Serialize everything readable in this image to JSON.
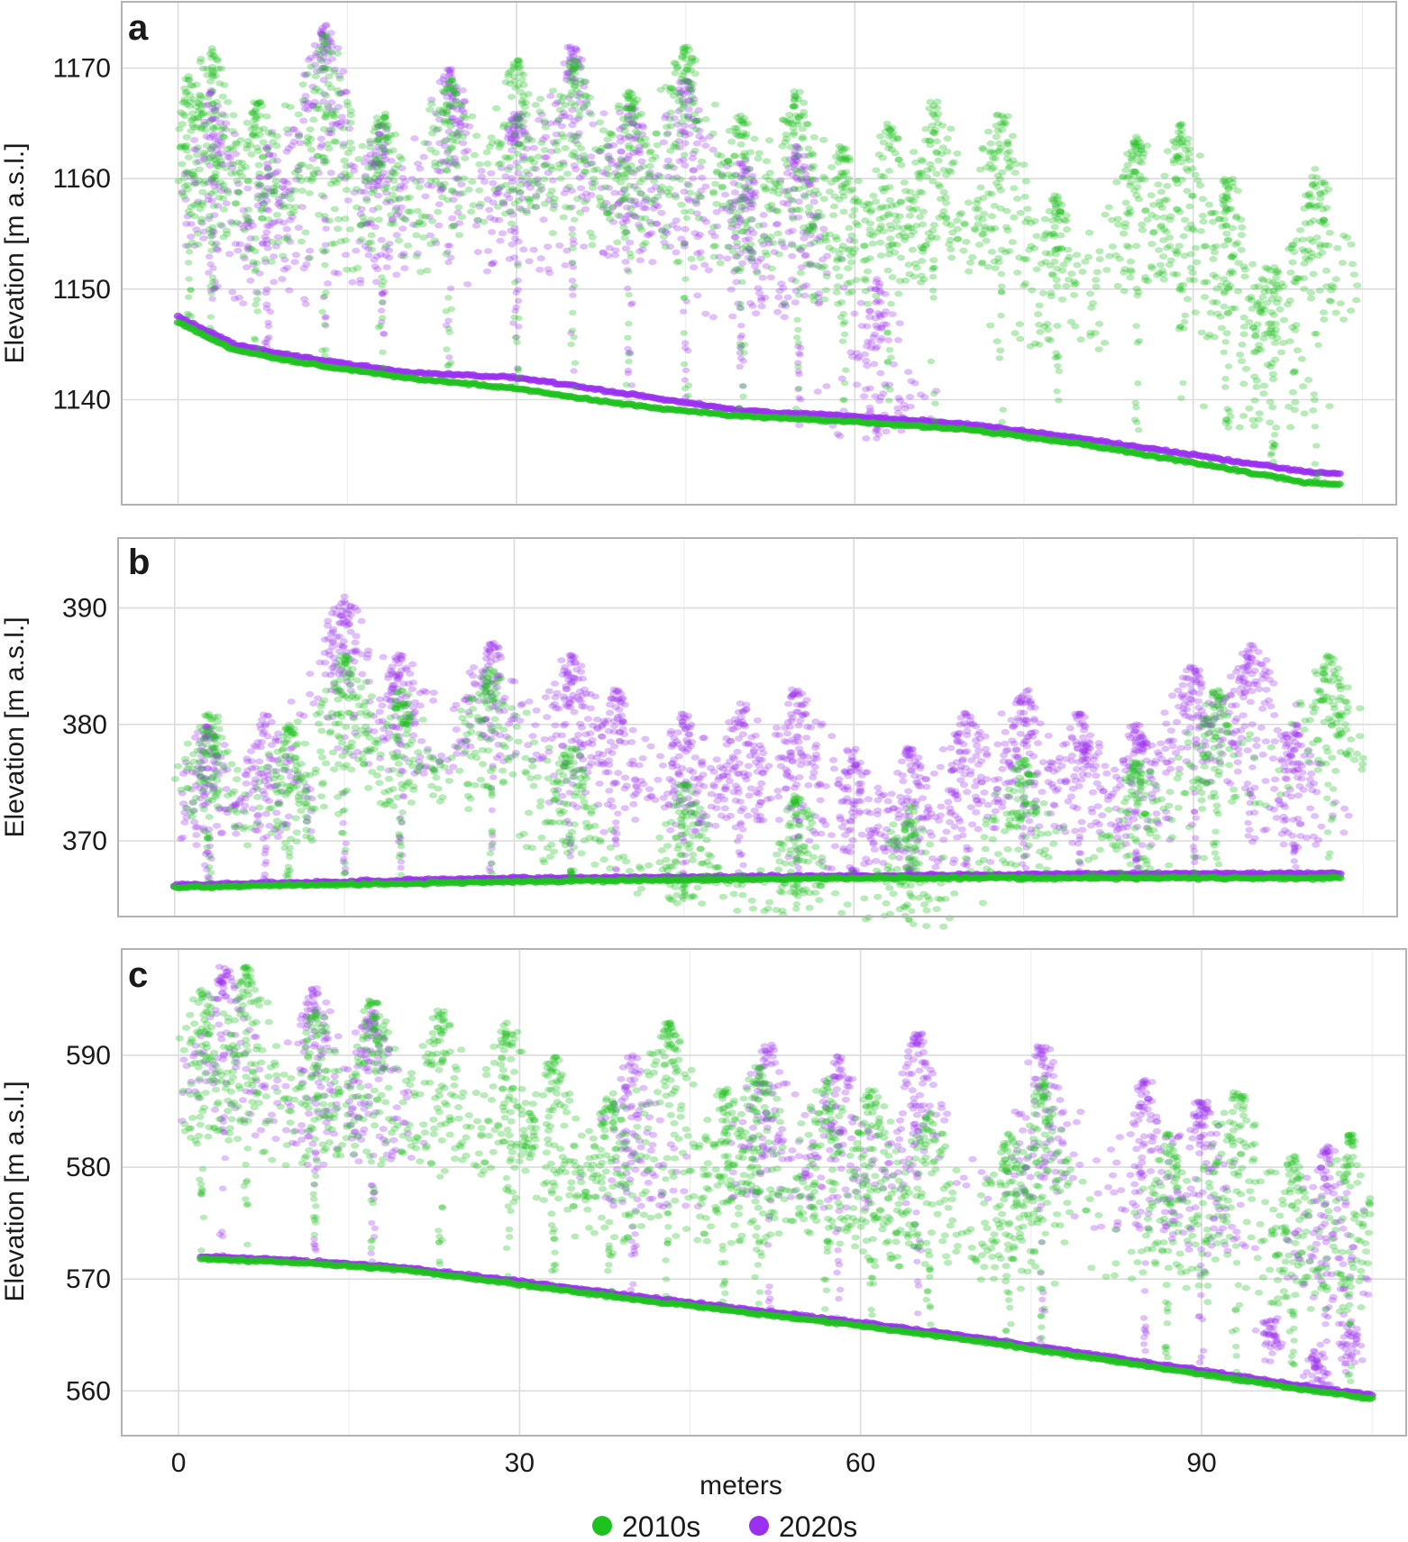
{
  "chart_data": [
    {
      "panel": "a",
      "type": "scatter",
      "ylabel": "Elevation [m a.s.l.]",
      "xlim": [
        -5,
        108
      ],
      "ylim": [
        1130.5,
        1176
      ],
      "xticks": [
        0,
        30,
        60,
        90
      ],
      "yticks": [
        1140,
        1150,
        1160,
        1170
      ],
      "grid": true,
      "series": [
        {
          "name": "2010s",
          "color": "#1ec21e",
          "ground": [
            [
              0,
              1147
            ],
            [
              5,
              1144.5
            ],
            [
              10,
              1143.5
            ],
            [
              20,
              1142
            ],
            [
              30,
              1141
            ],
            [
              40,
              1139.5
            ],
            [
              50,
              1138.5
            ],
            [
              60,
              1138
            ],
            [
              70,
              1137.3
            ],
            [
              80,
              1136
            ],
            [
              90,
              1134.3
            ],
            [
              100,
              1132.5
            ],
            [
              103,
              1132.3
            ]
          ],
          "crowns": [
            [
              1,
              1169
            ],
            [
              3,
              1172
            ],
            [
              7,
              1167
            ],
            [
              13,
              1173
            ],
            [
              18,
              1166
            ],
            [
              24,
              1169
            ],
            [
              30,
              1171
            ],
            [
              35,
              1171
            ],
            [
              40,
              1168
            ],
            [
              45,
              1172
            ],
            [
              50,
              1166
            ],
            [
              55,
              1168
            ],
            [
              59,
              1163
            ],
            [
              63,
              1165
            ],
            [
              67,
              1167
            ],
            [
              73,
              1166
            ],
            [
              78,
              1159
            ],
            [
              85,
              1164
            ],
            [
              89,
              1165
            ],
            [
              93,
              1160
            ],
            [
              97,
              1152
            ],
            [
              101,
              1161
            ]
          ]
        },
        {
          "name": "2020s",
          "color": "#9b30f0",
          "ground": [
            [
              0,
              1147.5
            ],
            [
              5,
              1145
            ],
            [
              10,
              1144
            ],
            [
              20,
              1142.5
            ],
            [
              30,
              1142
            ],
            [
              40,
              1140.5
            ],
            [
              50,
              1139
            ],
            [
              60,
              1138.5
            ],
            [
              70,
              1137.8
            ],
            [
              80,
              1136.5
            ],
            [
              90,
              1135
            ],
            [
              100,
              1133.5
            ],
            [
              103,
              1133.3
            ]
          ],
          "crowns": [
            [
              3,
              1168
            ],
            [
              8,
              1163
            ],
            [
              13,
              1174
            ],
            [
              18,
              1165
            ],
            [
              24,
              1170
            ],
            [
              30,
              1166
            ],
            [
              35,
              1172
            ],
            [
              40,
              1167
            ],
            [
              45,
              1169
            ],
            [
              50,
              1162
            ],
            [
              55,
              1163
            ],
            [
              62,
              1151
            ]
          ]
        }
      ]
    },
    {
      "panel": "b",
      "type": "scatter",
      "ylabel": "Elevation [m a.s.l.]",
      "xlim": [
        -5,
        108
      ],
      "ylim": [
        363.5,
        396
      ],
      "xticks": [
        0,
        30,
        60,
        90
      ],
      "yticks": [
        370,
        380,
        390
      ],
      "grid": true,
      "series": [
        {
          "name": "2010s",
          "color": "#1ec21e",
          "ground": [
            [
              0,
              366
            ],
            [
              30,
              366.5
            ],
            [
              60,
              366.8
            ],
            [
              90,
              366.8
            ],
            [
              103,
              366.8
            ]
          ],
          "crowns": [
            [
              3,
              381
            ],
            [
              10,
              380
            ],
            [
              15,
              386
            ],
            [
              20,
              383
            ],
            [
              28,
              385
            ],
            [
              35,
              378
            ],
            [
              45,
              375
            ],
            [
              55,
              374
            ],
            [
              65,
              373
            ],
            [
              75,
              377
            ],
            [
              85,
              377
            ],
            [
              92,
              383
            ],
            [
              102,
              386
            ]
          ]
        },
        {
          "name": "2020s",
          "color": "#9b30f0",
          "ground": [
            [
              0,
              366.2
            ],
            [
              30,
              366.8
            ],
            [
              60,
              367
            ],
            [
              90,
              367.2
            ],
            [
              103,
              367.2
            ]
          ],
          "crowns": [
            [
              3,
              380
            ],
            [
              8,
              381
            ],
            [
              15,
              391
            ],
            [
              20,
              386
            ],
            [
              28,
              387
            ],
            [
              35,
              386
            ],
            [
              39,
              383
            ],
            [
              45,
              381
            ],
            [
              50,
              382
            ],
            [
              55,
              383
            ],
            [
              60,
              378
            ],
            [
              65,
              378
            ],
            [
              70,
              381
            ],
            [
              75,
              383
            ],
            [
              80,
              381
            ],
            [
              85,
              380
            ],
            [
              90,
              385
            ],
            [
              95,
              387
            ],
            [
              99,
              380
            ]
          ]
        }
      ]
    },
    {
      "panel": "c",
      "type": "scatter",
      "ylabel": "Elevation [m a.s.l.]",
      "xlim": [
        -5,
        108
      ],
      "ylim": [
        556,
        599.5
      ],
      "xticks": [
        0,
        30,
        60,
        90
      ],
      "yticks": [
        560,
        570,
        580,
        590
      ],
      "grid": true,
      "series": [
        {
          "name": "2010s",
          "color": "#1ec21e",
          "ground": [
            [
              2,
              571.8
            ],
            [
              10,
              571.5
            ],
            [
              20,
              570.8
            ],
            [
              30,
              569.5
            ],
            [
              40,
              568.2
            ],
            [
              50,
              567
            ],
            [
              60,
              565.8
            ],
            [
              70,
              564.5
            ],
            [
              80,
              563
            ],
            [
              90,
              561.5
            ],
            [
              100,
              560
            ],
            [
              105,
              559.3
            ]
          ],
          "crowns": [
            [
              2,
              596
            ],
            [
              6,
              598
            ],
            [
              12,
              594
            ],
            [
              17,
              595
            ],
            [
              23,
              594
            ],
            [
              29,
              593
            ],
            [
              33,
              590
            ],
            [
              38,
              587
            ],
            [
              43,
              593
            ],
            [
              48,
              587
            ],
            [
              51,
              589
            ],
            [
              57,
              588
            ],
            [
              61,
              587
            ],
            [
              66,
              585
            ],
            [
              73,
              583
            ],
            [
              76,
              588
            ],
            [
              87,
              583
            ],
            [
              93,
              587
            ],
            [
              98,
              581
            ],
            [
              103,
              583
            ]
          ]
        },
        {
          "name": "2020s",
          "color": "#9b30f0",
          "ground": [
            [
              2,
              572
            ],
            [
              10,
              571.7
            ],
            [
              20,
              571
            ],
            [
              30,
              569.8
            ],
            [
              40,
              568.5
            ],
            [
              50,
              567.3
            ],
            [
              60,
              566.1
            ],
            [
              70,
              564.8
            ],
            [
              80,
              563.3
            ],
            [
              90,
              561.8
            ],
            [
              100,
              560.3
            ],
            [
              105,
              559.6
            ]
          ],
          "crowns": [
            [
              4,
              598
            ],
            [
              12,
              596
            ],
            [
              17,
              594
            ],
            [
              40,
              590
            ],
            [
              52,
              591
            ],
            [
              58,
              590
            ],
            [
              65,
              592
            ],
            [
              76,
              591
            ],
            [
              85,
              588
            ],
            [
              90,
              586
            ],
            [
              101,
              582
            ]
          ],
          "low_clusters": [
            [
              96,
              565
            ],
            [
              100,
              562
            ],
            [
              103,
              564
            ]
          ]
        }
      ]
    }
  ],
  "axes": {
    "xlabel": "meters",
    "panel_letters": [
      "a",
      "b",
      "c"
    ]
  },
  "legend": {
    "placement": "bottom-center",
    "items": [
      {
        "label": "2010s",
        "color": "#1ec21e"
      },
      {
        "label": "2020s",
        "color": "#9b30f0"
      }
    ]
  }
}
